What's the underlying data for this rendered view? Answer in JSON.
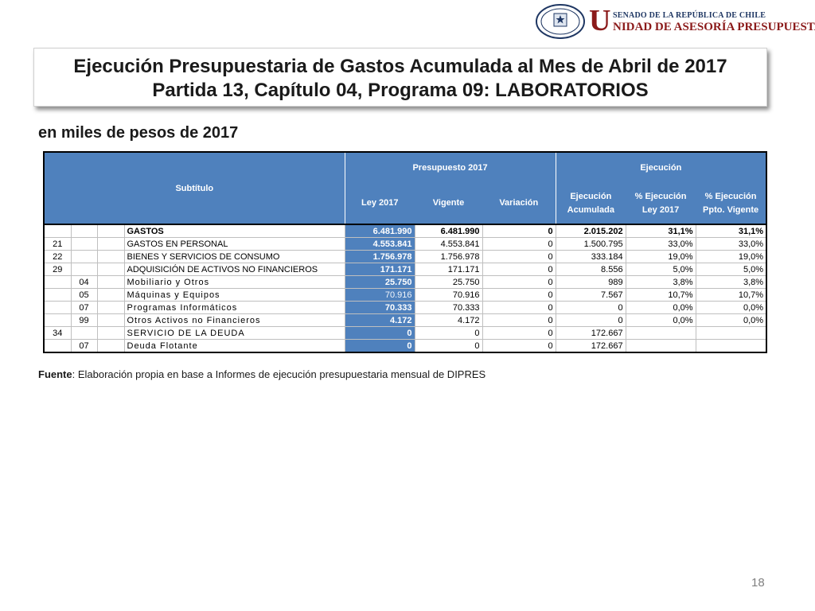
{
  "logo": {
    "line1": "SENADO DE LA REPÚBLICA DE CHILE",
    "big_letter": "U",
    "line2": "NIDAD DE ASESORÍA PRESUPUESTARIA",
    "seal_text_top": "REPÚBLICA DE CHILE",
    "seal_text_bottom": "SENADO"
  },
  "title": {
    "line1": "Ejecución Presupuestaria de Gastos Acumulada al Mes de Abril de 2017",
    "line2": "Partida 13, Capítulo 04, Programa 09: LABORATORIOS"
  },
  "units": "en miles de pesos de 2017",
  "table": {
    "headers": {
      "subtitulo": "Subtítulo",
      "presupuesto": "Presupuesto 2017",
      "ejecucion": "Ejecución",
      "ley": "Ley 2017",
      "vigente": "Vigente",
      "variacion": "Variación",
      "ejec_acum_1": "Ejecución",
      "ejec_acum_2": "Acumulada",
      "pct_ley_1": "% Ejecución",
      "pct_ley_2": "Ley 2017",
      "pct_vig_1": "% Ejecución",
      "pct_vig_2": "Ppto. Vigente"
    },
    "rows": [
      {
        "sub": "",
        "item": "",
        "asig": "",
        "name": "GASTOS",
        "ley": "6.481.990",
        "vigente": "6.481.990",
        "variacion": "0",
        "ejec": "2.015.202",
        "pct_ley": "31,1%",
        "pct_vig": "31,1%"
      },
      {
        "sub": "21",
        "item": "",
        "asig": "",
        "name": "GASTOS EN PERSONAL",
        "ley": "4.553.841",
        "vigente": "4.553.841",
        "variacion": "0",
        "ejec": "1.500.795",
        "pct_ley": "33,0%",
        "pct_vig": "33,0%"
      },
      {
        "sub": "22",
        "item": "",
        "asig": "",
        "name": "BIENES Y SERVICIOS DE CONSUMO",
        "ley": "1.756.978",
        "vigente": "1.756.978",
        "variacion": "0",
        "ejec": "333.184",
        "pct_ley": "19,0%",
        "pct_vig": "19,0%"
      },
      {
        "sub": "29",
        "item": "",
        "asig": "",
        "name": "ADQUISICIÓN DE ACTIVOS NO FINANCIEROS",
        "ley": "171.171",
        "vigente": "171.171",
        "variacion": "0",
        "ejec": "8.556",
        "pct_ley": "5,0%",
        "pct_vig": "5,0%"
      },
      {
        "sub": "",
        "item": "04",
        "asig": "",
        "name": "Mobiliario y Otros",
        "ley": "25.750",
        "vigente": "25.750",
        "variacion": "0",
        "ejec": "989",
        "pct_ley": "3,8%",
        "pct_vig": "3,8%"
      },
      {
        "sub": "",
        "item": "05",
        "asig": "",
        "name": "Máquinas y Equipos",
        "ley": "70.916",
        "vigente": "70.916",
        "variacion": "0",
        "ejec": "7.567",
        "pct_ley": "10,7%",
        "pct_vig": "10,7%"
      },
      {
        "sub": "",
        "item": "07",
        "asig": "",
        "name": "Programas Informáticos",
        "ley": "70.333",
        "vigente": "70.333",
        "variacion": "0",
        "ejec": "0",
        "pct_ley": "0,0%",
        "pct_vig": "0,0%"
      },
      {
        "sub": "",
        "item": "99",
        "asig": "",
        "name": "Otros Activos no Financieros",
        "ley": "4.172",
        "vigente": "4.172",
        "variacion": "0",
        "ejec": "0",
        "pct_ley": "0,0%",
        "pct_vig": "0,0%"
      },
      {
        "sub": "34",
        "item": "",
        "asig": "",
        "name": "SERVICIO DE LA DEUDA",
        "ley": "0",
        "vigente": "0",
        "variacion": "0",
        "ejec": "172.667",
        "pct_ley": "",
        "pct_vig": ""
      },
      {
        "sub": "",
        "item": "07",
        "asig": "",
        "name": "Deuda Flotante",
        "ley": "0",
        "vigente": "0",
        "variacion": "0",
        "ejec": "172.667",
        "pct_ley": "",
        "pct_vig": ""
      }
    ]
  },
  "source": {
    "label": "Fuente",
    "text": ": Elaboración propia en base  a Informes de ejecución presupuestaria mensual de DIPRES"
  },
  "page_number": "18",
  "colors": {
    "header_blue": "#4f81bd",
    "logo_red": "#8b1a1a",
    "logo_navy": "#1f3763"
  }
}
